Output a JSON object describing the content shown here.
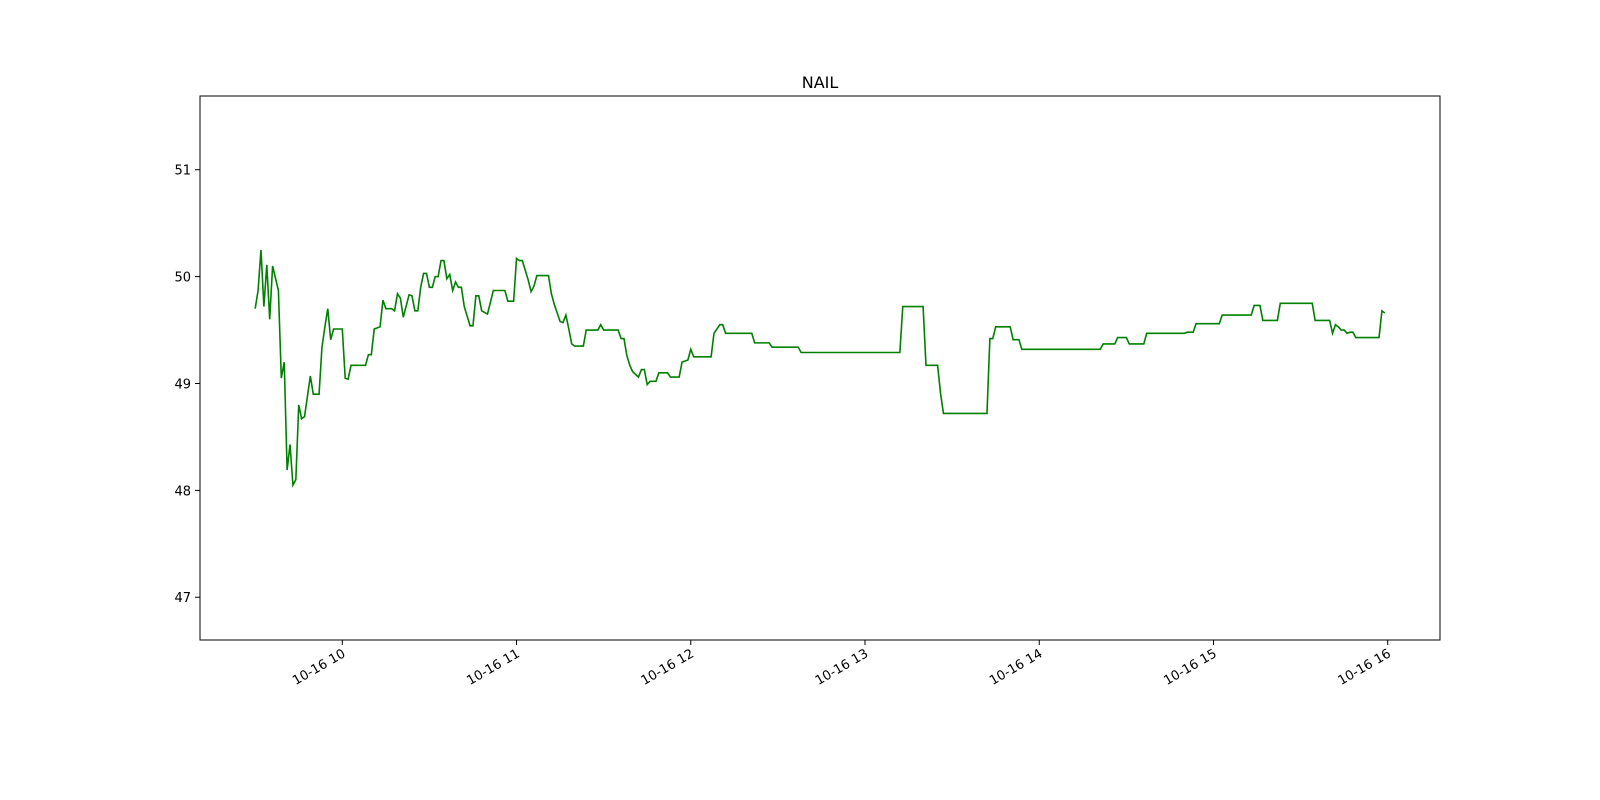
{
  "chart_data": {
    "type": "line",
    "title": "NAIL",
    "color": "green",
    "x": [
      "10-16 09:30",
      "10-16 09:31",
      "10-16 09:32",
      "10-16 09:33",
      "10-16 09:34",
      "10-16 09:35",
      "10-16 09:36",
      "10-16 09:38",
      "10-16 09:39",
      "10-16 09:40",
      "10-16 09:41",
      "10-16 09:42",
      "10-16 09:43",
      "10-16 09:44",
      "10-16 09:45",
      "10-16 09:46",
      "10-16 09:47",
      "10-16 09:49",
      "10-16 09:50",
      "10-16 09:52",
      "10-16 09:53",
      "10-16 09:54",
      "10-16 09:55",
      "10-16 09:56",
      "10-16 09:57",
      "10-16 10:00",
      "10-16 10:01",
      "10-16 10:02",
      "10-16 10:03",
      "10-16 10:08",
      "10-16 10:09",
      "10-16 10:10",
      "10-16 10:11",
      "10-16 10:13",
      "10-16 10:14",
      "10-16 10:15",
      "10-16 10:17",
      "10-16 10:18",
      "10-16 10:19",
      "10-16 10:20",
      "10-16 10:21",
      "10-16 10:23",
      "10-16 10:24",
      "10-16 10:25",
      "10-16 10:26",
      "10-16 10:27",
      "10-16 10:28",
      "10-16 10:29",
      "10-16 10:30",
      "10-16 10:31",
      "10-16 10:32",
      "10-16 10:33",
      "10-16 10:34",
      "10-16 10:35",
      "10-16 10:36",
      "10-16 10:37",
      "10-16 10:38",
      "10-16 10:39",
      "10-16 10:40",
      "10-16 10:41",
      "10-16 10:42",
      "10-16 10:44",
      "10-16 10:45",
      "10-16 10:46",
      "10-16 10:47",
      "10-16 10:48",
      "10-16 10:50",
      "10-16 10:51",
      "10-16 10:52",
      "10-16 10:56",
      "10-16 10:57",
      "10-16 10:59",
      "10-16 11:00",
      "10-16 11:01",
      "10-16 11:02",
      "10-16 11:04",
      "10-16 11:05",
      "10-16 11:06",
      "10-16 11:07",
      "10-16 11:11",
      "10-16 11:12",
      "10-16 11:13",
      "10-16 11:14",
      "10-16 11:15",
      "10-16 11:16",
      "10-16 11:17",
      "10-16 11:18",
      "10-16 11:19",
      "10-16 11:20",
      "10-16 11:23",
      "10-16 11:24",
      "10-16 11:28",
      "10-16 11:29",
      "10-16 11:30",
      "10-16 11:35",
      "10-16 11:36",
      "10-16 11:37",
      "10-16 11:38",
      "10-16 11:39",
      "10-16 11:40",
      "10-16 11:42",
      "10-16 11:43",
      "10-16 11:44",
      "10-16 11:45",
      "10-16 11:46",
      "10-16 11:48",
      "10-16 11:49",
      "10-16 11:52",
      "10-16 11:53",
      "10-16 11:56",
      "10-16 11:57",
      "10-16 11:59",
      "10-16 12:00",
      "10-16 12:01",
      "10-16 12:07",
      "10-16 12:08",
      "10-16 12:10",
      "10-16 12:11",
      "10-16 12:12",
      "10-16 12:21",
      "10-16 12:22",
      "10-16 12:27",
      "10-16 12:28",
      "10-16 12:37",
      "10-16 12:38",
      "10-16 13:12",
      "10-16 13:13",
      "10-16 13:20",
      "10-16 13:21",
      "10-16 13:25",
      "10-16 13:26",
      "10-16 13:27",
      "10-16 13:42",
      "10-16 13:43",
      "10-16 13:44",
      "10-16 13:45",
      "10-16 13:50",
      "10-16 13:51",
      "10-16 13:53",
      "10-16 13:54",
      "10-16 14:21",
      "10-16 14:22",
      "10-16 14:26",
      "10-16 14:27",
      "10-16 14:30",
      "10-16 14:31",
      "10-16 14:36",
      "10-16 14:37",
      "10-16 14:50",
      "10-16 14:51",
      "10-16 14:53",
      "10-16 14:54",
      "10-16 15:02",
      "10-16 15:03",
      "10-16 15:13",
      "10-16 15:14",
      "10-16 15:16",
      "10-16 15:17",
      "10-16 15:22",
      "10-16 15:23",
      "10-16 15:34",
      "10-16 15:35",
      "10-16 15:40",
      "10-16 15:41",
      "10-16 15:42",
      "10-16 15:43",
      "10-16 15:44",
      "10-16 15:45",
      "10-16 15:46",
      "10-16 15:47",
      "10-16 15:48",
      "10-16 15:49",
      "10-16 15:57",
      "10-16 15:58",
      "10-16 15:59"
    ],
    "values": [
      49.7,
      49.87,
      50.25,
      49.72,
      50.11,
      49.6,
      50.1,
      49.87,
      49.05,
      49.2,
      48.19,
      48.43,
      48.05,
      48.1,
      48.8,
      48.67,
      48.69,
      49.07,
      48.9,
      48.9,
      49.34,
      49.53,
      49.7,
      49.41,
      49.51,
      49.51,
      49.05,
      49.04,
      49.17,
      49.17,
      49.27,
      49.27,
      49.51,
      49.53,
      49.78,
      49.7,
      49.7,
      49.68,
      49.84,
      49.8,
      49.62,
      49.83,
      49.82,
      49.68,
      49.68,
      49.9,
      50.03,
      50.03,
      49.9,
      49.9,
      50.0,
      50.0,
      50.15,
      50.15,
      49.98,
      50.02,
      49.87,
      49.95,
      49.9,
      49.9,
      49.72,
      49.54,
      49.54,
      49.82,
      49.82,
      49.68,
      49.65,
      49.76,
      49.87,
      49.87,
      49.77,
      49.77,
      50.17,
      50.15,
      50.15,
      49.97,
      49.86,
      49.91,
      50.01,
      50.01,
      49.84,
      49.74,
      49.66,
      49.58,
      49.57,
      49.64,
      49.51,
      49.37,
      49.35,
      49.35,
      49.5,
      49.5,
      49.55,
      49.5,
      49.5,
      49.42,
      49.42,
      49.26,
      49.17,
      49.11,
      49.06,
      49.13,
      49.13,
      48.99,
      49.02,
      49.02,
      49.1,
      49.1,
      49.06,
      49.06,
      49.2,
      49.22,
      49.32,
      49.25,
      49.25,
      49.47,
      49.55,
      49.55,
      49.47,
      49.47,
      49.38,
      49.38,
      49.34,
      49.34,
      49.29,
      49.29,
      49.72,
      49.72,
      49.17,
      49.17,
      48.91,
      48.72,
      48.72,
      49.42,
      49.42,
      49.53,
      49.53,
      49.41,
      49.41,
      49.32,
      49.32,
      49.37,
      49.37,
      49.43,
      49.43,
      49.37,
      49.37,
      49.47,
      49.47,
      49.48,
      49.48,
      49.56,
      49.56,
      49.64,
      49.64,
      49.73,
      49.73,
      49.59,
      49.59,
      49.75,
      49.75,
      49.59,
      49.59,
      49.47,
      49.55,
      49.53,
      49.5,
      49.5,
      49.47,
      49.48,
      49.48,
      49.43,
      49.43,
      49.68,
      49.66
    ],
    "xlim": [
      "10-16 09:11",
      "10-16 16:18"
    ],
    "xticks": [
      {
        "value": "10-16 10:00",
        "label": "10-16 10"
      },
      {
        "value": "10-16 11:00",
        "label": "10-16 11"
      },
      {
        "value": "10-16 12:00",
        "label": "10-16 12"
      },
      {
        "value": "10-16 13:00",
        "label": "10-16 13"
      },
      {
        "value": "10-16 14:00",
        "label": "10-16 14"
      },
      {
        "value": "10-16 15:00",
        "label": "10-16 15"
      },
      {
        "value": "10-16 16:00",
        "label": "10-16 16"
      }
    ],
    "ylim": [
      46.6,
      51.69
    ],
    "yticks": [
      47,
      48,
      49,
      50,
      51
    ],
    "grid": false
  }
}
